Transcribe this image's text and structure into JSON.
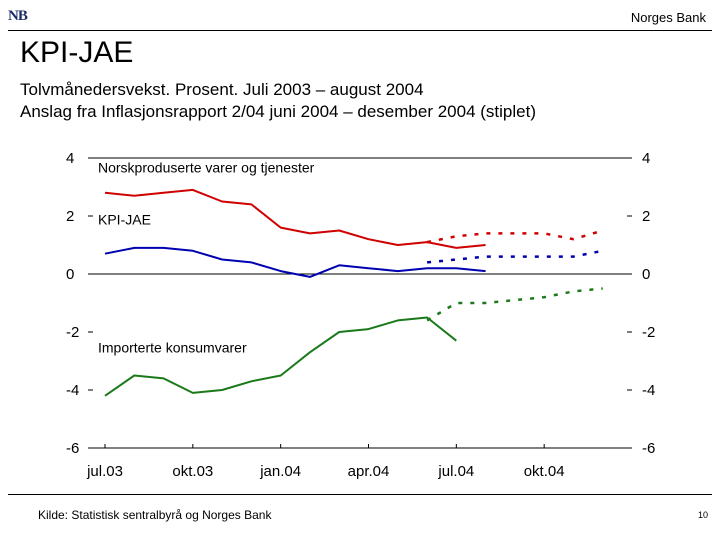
{
  "header": {
    "logo": "NB",
    "bank": "Norges Bank"
  },
  "title": "KPI-JAE",
  "subtitle1": "Tolvmånedersvekst. Prosent. Juli 2003 – august 2004",
  "subtitle2": "Anslag fra Inflasjonsrapport 2/04 juni 2004 – desember 2004 (stiplet)",
  "footer": {
    "source": "Kilde: Statistisk sentralbyrå og Norges Bank",
    "page": "10"
  },
  "chart_data": {
    "type": "line",
    "ylim": [
      -6,
      4
    ],
    "yticks": [
      -6,
      -4,
      -2,
      0,
      2,
      4
    ],
    "x_range": [
      0,
      18
    ],
    "x_tick_positions": [
      0,
      3,
      6,
      9,
      12,
      15
    ],
    "x_tick_labels": [
      "jul.03",
      "okt.03",
      "jan.04",
      "apr.04",
      "jul.04",
      "okt.04"
    ],
    "series": [
      {
        "name": "Norskproduserte varer og tjenester",
        "color": "#d00000",
        "dashed": false,
        "x": [
          0,
          1,
          2,
          3,
          4,
          5,
          6,
          7,
          8,
          9,
          10,
          11,
          12,
          13
        ],
        "values": [
          2.8,
          2.7,
          2.8,
          2.9,
          2.5,
          2.4,
          1.6,
          1.4,
          1.5,
          1.2,
          1.0,
          1.1,
          0.9,
          1.0
        ]
      },
      {
        "name": "KPI-JAE",
        "color": "#0000b0",
        "dashed": false,
        "x": [
          0,
          1,
          2,
          3,
          4,
          5,
          6,
          7,
          8,
          9,
          10,
          11,
          12,
          13
        ],
        "values": [
          0.7,
          0.9,
          0.9,
          0.8,
          0.5,
          0.4,
          0.1,
          -0.1,
          0.3,
          0.2,
          0.1,
          0.2,
          0.2,
          0.1
        ]
      },
      {
        "name": "Importerte konsumvarer",
        "color": "#1a7a1a",
        "dashed": false,
        "x": [
          0,
          1,
          2,
          3,
          4,
          5,
          6,
          7,
          8,
          9,
          10,
          11,
          12,
          13
        ],
        "values": [
          -4.2,
          -3.5,
          -3.6,
          -4.1,
          -4.0,
          -3.7,
          -3.5,
          -2.7,
          -2.0,
          -1.9,
          -1.6,
          -1.5,
          -2.3,
          null
        ]
      },
      {
        "name": "Norskproduserte varer og tjenester (anslag)",
        "color": "#d00000",
        "dashed": true,
        "x": [
          11,
          12,
          13,
          14,
          15,
          16,
          17
        ],
        "values": [
          1.1,
          1.3,
          1.4,
          1.4,
          1.4,
          1.2,
          1.5
        ]
      },
      {
        "name": "KPI-JAE (anslag)",
        "color": "#0000b0",
        "dashed": true,
        "x": [
          11,
          12,
          13,
          14,
          15,
          16,
          17
        ],
        "values": [
          0.4,
          0.5,
          0.6,
          0.6,
          0.6,
          0.6,
          0.8
        ]
      },
      {
        "name": "Importerte konsumvarer (anslag)",
        "color": "#1a7a1a",
        "dashed": true,
        "x": [
          11,
          12,
          13,
          14,
          15,
          16,
          17
        ],
        "values": [
          -1.6,
          -1.0,
          -1.0,
          -0.9,
          -0.8,
          -0.6,
          -0.5
        ]
      }
    ],
    "annotations": [
      {
        "text": "Norskproduserte varer og tjenester",
        "x": 0,
        "y": 3.5
      },
      {
        "text": "KPI-JAE",
        "x": 0,
        "y": 1.7
      },
      {
        "text": "Importerte konsumvarer",
        "x": 0,
        "y": -2.7
      }
    ]
  }
}
